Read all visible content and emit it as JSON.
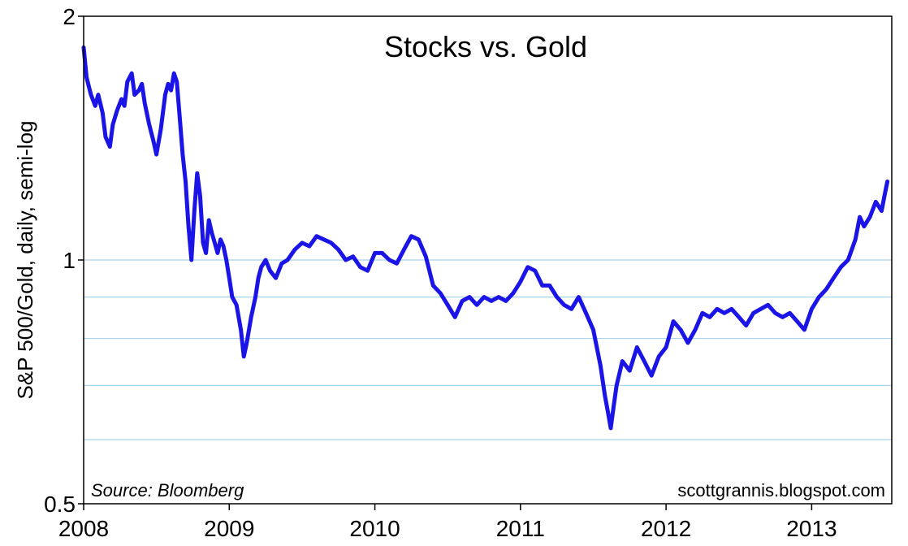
{
  "chart_data": {
    "type": "line",
    "title": "Stocks vs. Gold",
    "ylabel": "S&P 500/Gold, daily, semi-log",
    "xlabel": "",
    "source": "Source: Bloomberg",
    "credit": "scottgrannis.blogspot.com",
    "y_scale": "log",
    "ylim": [
      0.5,
      2
    ],
    "xlim": [
      2008.0,
      2013.55
    ],
    "y_ticks": [
      {
        "value": 2,
        "label": "2"
      },
      {
        "value": 1,
        "label": "1"
      },
      {
        "value": 0.5,
        "label": "0.5"
      }
    ],
    "y_gridlines": [
      1,
      0.9,
      0.8,
      0.7,
      0.6
    ],
    "x_ticks": [
      {
        "value": 2008,
        "label": "2008"
      },
      {
        "value": 2009,
        "label": "2009"
      },
      {
        "value": 2010,
        "label": "2010"
      },
      {
        "value": 2011,
        "label": "2011"
      },
      {
        "value": 2012,
        "label": "2012"
      },
      {
        "value": 2013,
        "label": "2013"
      }
    ],
    "line_color": "#1a14e6",
    "grid_color": "#a8d4ee",
    "series": [
      {
        "x": [
          2008.0,
          2008.02,
          2008.05,
          2008.08,
          2008.1,
          2008.13,
          2008.15,
          2008.18,
          2008.2,
          2008.23,
          2008.26,
          2008.28,
          2008.3,
          2008.33,
          2008.35,
          2008.38,
          2008.4,
          2008.42,
          2008.45,
          2008.48,
          2008.5,
          2008.53,
          2008.56,
          2008.58,
          2008.6,
          2008.62,
          2008.64,
          2008.66,
          2008.68,
          2008.7,
          2008.72,
          2008.74,
          2008.76,
          2008.78,
          2008.8,
          2008.82,
          2008.84,
          2008.86,
          2008.88,
          2008.9,
          2008.92,
          2008.94,
          2008.96,
          2008.98,
          2009.0,
          2009.02,
          2009.05,
          2009.08,
          2009.1,
          2009.12,
          2009.15,
          2009.18,
          2009.2,
          2009.22,
          2009.25,
          2009.28,
          2009.32,
          2009.36,
          2009.4,
          2009.45,
          2009.5,
          2009.55,
          2009.6,
          2009.65,
          2009.7,
          2009.75,
          2009.8,
          2009.85,
          2009.9,
          2009.95,
          2010.0,
          2010.05,
          2010.1,
          2010.15,
          2010.2,
          2010.25,
          2010.3,
          2010.35,
          2010.4,
          2010.45,
          2010.5,
          2010.55,
          2010.6,
          2010.65,
          2010.7,
          2010.75,
          2010.8,
          2010.85,
          2010.9,
          2010.95,
          2011.0,
          2011.05,
          2011.1,
          2011.15,
          2011.2,
          2011.25,
          2011.3,
          2011.35,
          2011.4,
          2011.45,
          2011.5,
          2011.55,
          2011.58,
          2011.6,
          2011.62,
          2011.64,
          2011.66,
          2011.7,
          2011.75,
          2011.8,
          2011.85,
          2011.9,
          2011.95,
          2012.0,
          2012.05,
          2012.1,
          2012.15,
          2012.2,
          2012.25,
          2012.3,
          2012.35,
          2012.4,
          2012.45,
          2012.5,
          2012.55,
          2012.6,
          2012.65,
          2012.7,
          2012.75,
          2012.8,
          2012.85,
          2012.9,
          2012.95,
          2013.0,
          2013.05,
          2013.1,
          2013.15,
          2013.2,
          2013.25,
          2013.3,
          2013.33,
          2013.36,
          2013.4,
          2013.44,
          2013.48,
          2013.5,
          2013.52
        ],
        "y": [
          1.83,
          1.68,
          1.6,
          1.55,
          1.6,
          1.52,
          1.42,
          1.38,
          1.47,
          1.53,
          1.58,
          1.55,
          1.66,
          1.7,
          1.6,
          1.62,
          1.65,
          1.56,
          1.47,
          1.4,
          1.35,
          1.45,
          1.6,
          1.65,
          1.62,
          1.7,
          1.66,
          1.5,
          1.35,
          1.25,
          1.1,
          1.0,
          1.15,
          1.28,
          1.2,
          1.05,
          1.02,
          1.12,
          1.08,
          1.05,
          1.02,
          1.06,
          1.04,
          1.0,
          0.95,
          0.9,
          0.88,
          0.82,
          0.76,
          0.79,
          0.85,
          0.9,
          0.95,
          0.98,
          1.0,
          0.97,
          0.95,
          0.99,
          1.0,
          1.03,
          1.05,
          1.04,
          1.07,
          1.06,
          1.05,
          1.03,
          1.0,
          1.01,
          0.98,
          0.97,
          1.02,
          1.02,
          1.0,
          0.99,
          1.03,
          1.07,
          1.06,
          1.01,
          0.93,
          0.91,
          0.88,
          0.85,
          0.89,
          0.9,
          0.88,
          0.9,
          0.89,
          0.9,
          0.89,
          0.91,
          0.94,
          0.98,
          0.97,
          0.93,
          0.93,
          0.9,
          0.88,
          0.87,
          0.9,
          0.86,
          0.82,
          0.74,
          0.68,
          0.65,
          0.62,
          0.66,
          0.7,
          0.75,
          0.73,
          0.78,
          0.75,
          0.72,
          0.76,
          0.78,
          0.84,
          0.82,
          0.79,
          0.82,
          0.86,
          0.85,
          0.87,
          0.86,
          0.87,
          0.85,
          0.83,
          0.86,
          0.87,
          0.88,
          0.86,
          0.85,
          0.86,
          0.84,
          0.82,
          0.87,
          0.9,
          0.92,
          0.95,
          0.98,
          1.0,
          1.06,
          1.13,
          1.1,
          1.13,
          1.18,
          1.15,
          1.2,
          1.25
        ]
      }
    ]
  }
}
